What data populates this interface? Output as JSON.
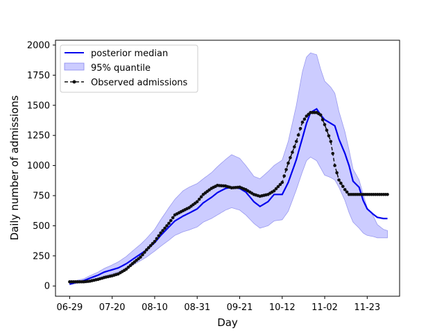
{
  "chart_data": {
    "type": "line",
    "xlabel": "Day",
    "ylabel": "Daily number of admissions",
    "x_tick_labels": [
      "06-29",
      "07-20",
      "08-10",
      "08-31",
      "09-21",
      "10-12",
      "11-02",
      "11-23"
    ],
    "x_tick_days": [
      0,
      21,
      42,
      63,
      84,
      105,
      126,
      147
    ],
    "y_ticks": [
      0,
      250,
      500,
      750,
      1000,
      1250,
      1500,
      1750,
      2000
    ],
    "xlim": [
      -7,
      163
    ],
    "ylim": [
      -85,
      2040
    ],
    "grid": false,
    "legend_position": "top-left",
    "legend": [
      "posterior median",
      "95% quantile",
      "Observed admissions"
    ],
    "colors": {
      "median": "#0000ee",
      "band": "#aaaaff",
      "observed": "#111111"
    },
    "x_anchor_days": [
      0,
      3,
      7,
      10,
      14,
      17,
      21,
      24,
      28,
      31,
      35,
      38,
      42,
      45,
      49,
      52,
      56,
      59,
      63,
      66,
      70,
      73,
      77,
      80,
      84,
      87,
      91,
      94,
      98,
      101,
      105,
      108,
      112,
      115,
      117,
      119,
      122,
      124,
      126,
      129,
      131,
      133,
      136,
      138,
      140,
      143,
      145,
      147,
      150,
      152,
      155,
      157
    ],
    "series": [
      {
        "name": "posterior median",
        "values": [
          15,
          30,
          45,
          65,
          90,
          115,
          135,
          150,
          185,
          220,
          265,
          300,
          360,
          420,
          490,
          540,
          580,
          605,
          640,
          690,
          735,
          775,
          810,
          820,
          810,
          780,
          700,
          660,
          700,
          760,
          760,
          860,
          1050,
          1230,
          1350,
          1440,
          1470,
          1420,
          1380,
          1350,
          1330,
          1220,
          1100,
          1000,
          870,
          820,
          710,
          640,
          595,
          570,
          560,
          560
        ]
      },
      {
        "name": "95% quantile upper",
        "values": [
          40,
          45,
          60,
          85,
          115,
          145,
          175,
          200,
          245,
          290,
          345,
          395,
          470,
          550,
          650,
          720,
          790,
          820,
          850,
          890,
          940,
          990,
          1050,
          1090,
          1060,
          1000,
          910,
          890,
          950,
          1000,
          1045,
          1200,
          1500,
          1780,
          1900,
          1935,
          1920,
          1800,
          1700,
          1650,
          1600,
          1450,
          1280,
          1130,
          970,
          880,
          760,
          650,
          580,
          510,
          470,
          460
        ]
      },
      {
        "name": "95% quantile lower",
        "values": [
          10,
          20,
          30,
          45,
          60,
          80,
          100,
          115,
          140,
          170,
          210,
          240,
          290,
          330,
          380,
          420,
          450,
          465,
          490,
          530,
          560,
          590,
          630,
          650,
          630,
          590,
          520,
          480,
          500,
          540,
          550,
          620,
          800,
          950,
          1040,
          1070,
          1040,
          980,
          920,
          900,
          880,
          820,
          710,
          610,
          530,
          480,
          440,
          420,
          410,
          400,
          400,
          400
        ]
      },
      {
        "name": "Observed admissions",
        "values": [
          35,
          35,
          35,
          40,
          55,
          70,
          85,
          100,
          140,
          185,
          240,
          300,
          370,
          440,
          520,
          590,
          625,
          650,
          700,
          760,
          810,
          835,
          830,
          815,
          820,
          800,
          760,
          745,
          760,
          790,
          860,
          1020,
          1200,
          1360,
          1410,
          1440,
          1440,
          1420,
          1340,
          1200,
          1000,
          880,
          800,
          760,
          760,
          760,
          760,
          760,
          760,
          760,
          760,
          760
        ]
      }
    ]
  }
}
